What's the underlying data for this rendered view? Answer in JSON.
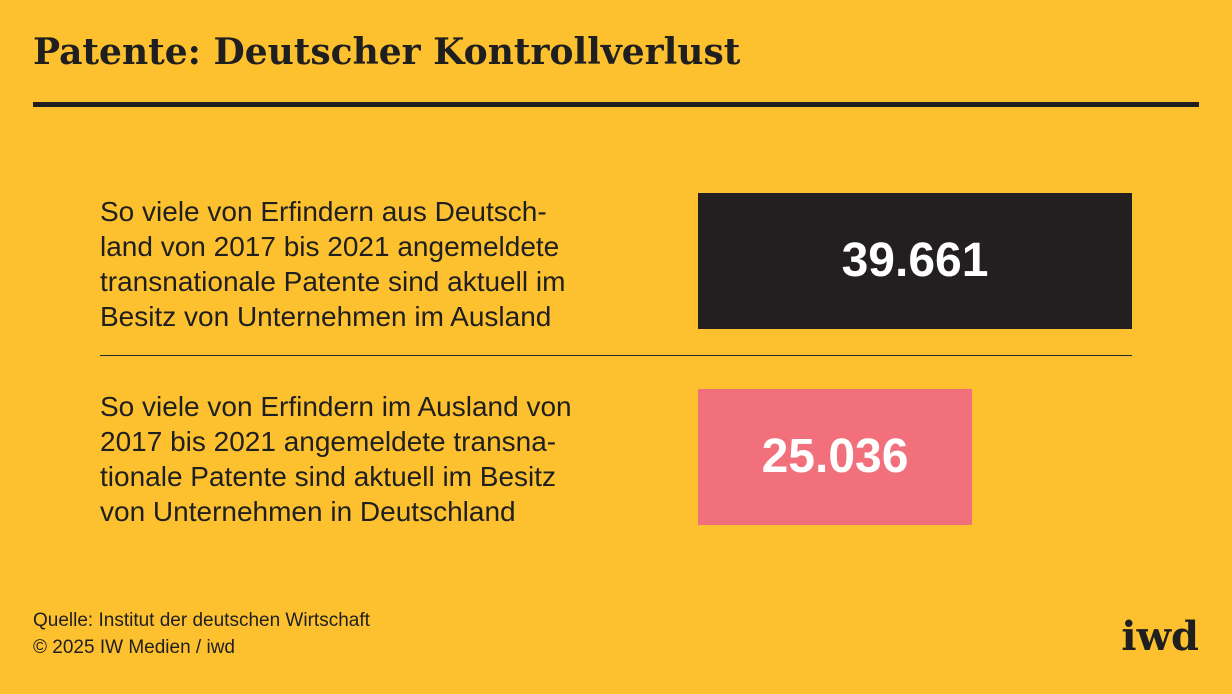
{
  "title": "Patente: Deutscher Kontrollverlust",
  "chart_data": {
    "type": "bar",
    "orientation": "horizontal",
    "categories": [
      "So viele von Erfindern aus Deutschland von 2017 bis 2021 angemeldete transnationale Patente sind aktuell im Besitz von Unternehmen im Ausland",
      "So viele von Erfindern im Ausland von 2017 bis 2021 angemeldete transnationale Patente sind aktuell im Besitz von Unternehmen in Deutschland"
    ],
    "category_lines": [
      [
        "So viele von Erfindern aus Deutsch-",
        "land von 2017 bis 2021 angemeldete",
        "transnationale Patente sind aktuell im",
        "Besitz von Unternehmen im Ausland"
      ],
      [
        "So viele von Erfindern im Ausland von",
        "2017 bis 2021 angemeldete transna-",
        "tionale Patente sind aktuell im Besitz",
        "von Unternehmen in Deutschland"
      ]
    ],
    "values": [
      39661,
      25036
    ],
    "value_labels": [
      "39.661",
      "25.036"
    ],
    "colors": [
      "#231F20",
      "#F2707C"
    ],
    "title": "Patente: Deutscher Kontrollverlust",
    "xlabel": "",
    "ylabel": ""
  },
  "footer": {
    "source": "Quelle: Institut der deutschen Wirtschaft",
    "copyright": "© 2025 IW Medien / iwd"
  },
  "logo": "iwd"
}
